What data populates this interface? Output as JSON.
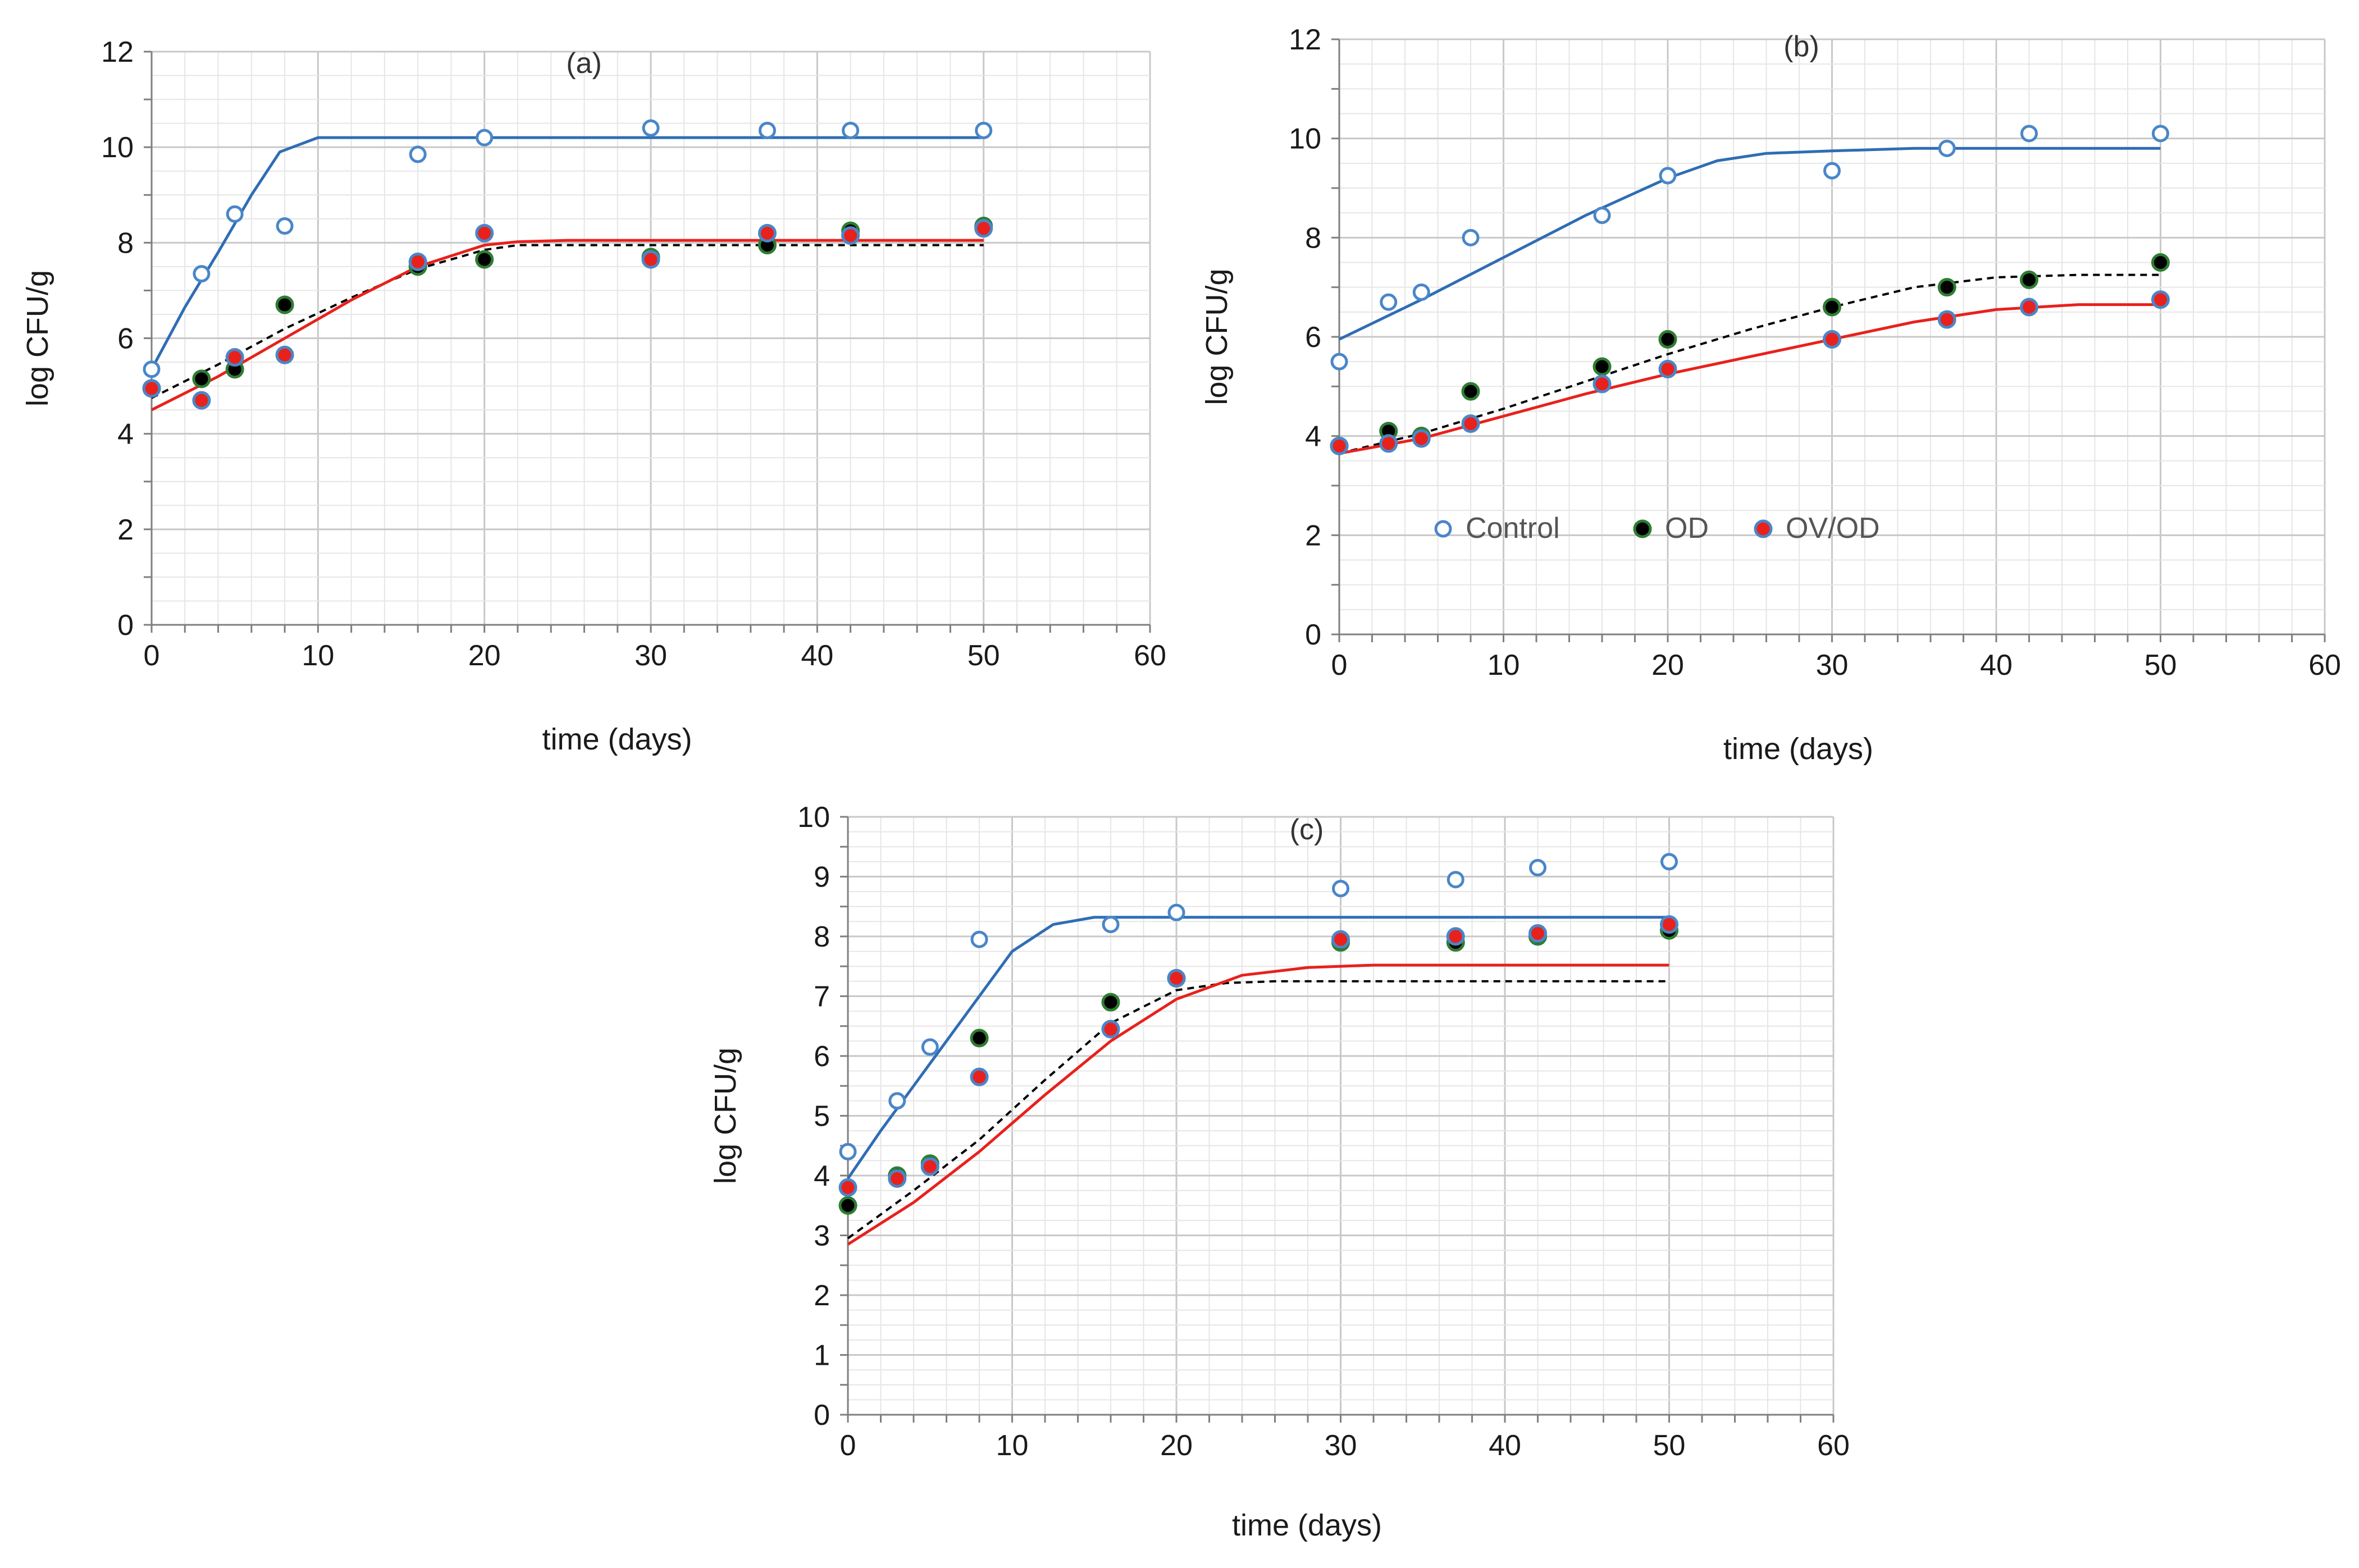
{
  "colors": {
    "control": "#4a86c8",
    "control_fit": "#2f6db4",
    "od_fill": "#000000",
    "od_ring": "#2e7d32",
    "ovod_fill": "#e8211c",
    "ovod_ring": "#4a86c8",
    "ovod_fit": "#e8211c",
    "od_fit": "#000000",
    "grid": "#d9d9d9",
    "axis": "#7f7f7f"
  },
  "legend": {
    "control": "Control",
    "od": "OD",
    "ovod": "OV/OD"
  },
  "chart_data": [
    {
      "id": "a",
      "type": "scatter",
      "title": "(a)",
      "xlabel": "time (days)",
      "ylabel": "log CFU/g",
      "xlim": [
        0,
        60
      ],
      "ylim": [
        0,
        12
      ],
      "xticks": [
        "0",
        "10",
        "20",
        "30",
        "40",
        "50",
        "60"
      ],
      "yticks": [
        "0",
        "2",
        "4",
        "6",
        "8",
        "10",
        "12"
      ],
      "ystep": 2,
      "grid": true,
      "legend_shown": false,
      "series": [
        {
          "name": "Control",
          "style": "open",
          "x": [
            0,
            3,
            5,
            8,
            16,
            20,
            30,
            37,
            42,
            50
          ],
          "y": [
            5.35,
            7.35,
            8.6,
            8.35,
            9.85,
            10.2,
            10.4,
            10.35,
            10.35,
            10.35
          ]
        },
        {
          "name": "OD",
          "style": "od",
          "x": [
            0,
            3,
            5,
            8,
            16,
            20,
            30,
            37,
            42,
            50
          ],
          "y": [
            4.95,
            5.15,
            5.35,
            6.7,
            7.5,
            7.65,
            7.7,
            7.95,
            8.25,
            8.35
          ]
        },
        {
          "name": "OV/OD",
          "style": "ovod",
          "x": [
            0,
            3,
            5,
            8,
            16,
            20,
            30,
            37,
            42,
            50
          ],
          "y": [
            4.95,
            4.7,
            5.6,
            5.65,
            7.6,
            8.2,
            7.65,
            8.2,
            8.15,
            8.3
          ]
        }
      ],
      "fits": [
        {
          "name": "Control fit",
          "style": "control",
          "x": [
            0,
            2,
            4,
            6,
            7.7,
            10,
            20,
            30,
            40,
            50
          ],
          "y": [
            5.35,
            6.65,
            7.8,
            9.0,
            9.9,
            10.2,
            10.2,
            10.2,
            10.2,
            10.2
          ]
        },
        {
          "name": "OD fit",
          "style": "od",
          "x": [
            0,
            4,
            8,
            12,
            16,
            20,
            22,
            25,
            30,
            40,
            50
          ],
          "y": [
            4.75,
            5.45,
            6.2,
            6.85,
            7.45,
            7.85,
            7.95,
            7.95,
            7.95,
            7.95,
            7.95
          ]
        },
        {
          "name": "OV/OD fit",
          "style": "ovod",
          "x": [
            0,
            4,
            8,
            12,
            16,
            20,
            22,
            25,
            30,
            40,
            50
          ],
          "y": [
            4.5,
            5.2,
            6.0,
            6.8,
            7.5,
            7.95,
            8.02,
            8.05,
            8.05,
            8.05,
            8.05
          ]
        }
      ]
    },
    {
      "id": "b",
      "type": "scatter",
      "title": "(b)",
      "xlabel": "time (days)",
      "ylabel": "log CFU/g",
      "xlim": [
        0,
        60
      ],
      "ylim": [
        0,
        12
      ],
      "xticks": [
        "0",
        "10",
        "20",
        "30",
        "40",
        "50",
        "60"
      ],
      "yticks": [
        "0",
        "2",
        "4",
        "6",
        "8",
        "10",
        "12"
      ],
      "ystep": 2,
      "grid": true,
      "legend_shown": true,
      "series": [
        {
          "name": "Control",
          "style": "open",
          "x": [
            0,
            3,
            5,
            8,
            16,
            20,
            30,
            37,
            42,
            50
          ],
          "y": [
            5.5,
            6.7,
            6.9,
            8.0,
            8.45,
            9.25,
            9.35,
            9.8,
            10.1,
            10.1
          ]
        },
        {
          "name": "OD",
          "style": "od",
          "x": [
            0,
            3,
            5,
            8,
            16,
            20,
            30,
            37,
            42,
            50
          ],
          "y": [
            3.8,
            4.1,
            4.0,
            4.9,
            5.4,
            5.95,
            6.6,
            7.0,
            7.15,
            7.5
          ]
        },
        {
          "name": "OV/OD",
          "style": "ovod",
          "x": [
            0,
            3,
            5,
            8,
            16,
            20,
            30,
            37,
            42,
            50
          ],
          "y": [
            3.8,
            3.85,
            3.95,
            4.25,
            5.05,
            5.35,
            5.95,
            6.35,
            6.6,
            6.75
          ]
        }
      ],
      "fits": [
        {
          "name": "Control fit",
          "style": "control",
          "x": [
            0,
            5,
            10,
            15,
            20,
            23,
            26,
            30,
            35,
            40,
            50
          ],
          "y": [
            5.95,
            6.75,
            7.6,
            8.45,
            9.2,
            9.55,
            9.7,
            9.75,
            9.8,
            9.8,
            9.8
          ]
        },
        {
          "name": "OD fit",
          "style": "od",
          "x": [
            0,
            5,
            10,
            15,
            20,
            25,
            30,
            35,
            40,
            45,
            50
          ],
          "y": [
            3.65,
            4.05,
            4.55,
            5.1,
            5.65,
            6.15,
            6.6,
            7.0,
            7.2,
            7.25,
            7.25
          ]
        },
        {
          "name": "OV/OD fit",
          "style": "ovod",
          "x": [
            0,
            5,
            10,
            15,
            20,
            25,
            30,
            35,
            40,
            45,
            50
          ],
          "y": [
            3.65,
            3.95,
            4.4,
            4.85,
            5.25,
            5.6,
            5.95,
            6.3,
            6.55,
            6.65,
            6.65
          ]
        }
      ]
    },
    {
      "id": "c",
      "type": "scatter",
      "title": "(c)",
      "xlabel": "time (days)",
      "ylabel": "log CFU/g",
      "xlim": [
        0,
        60
      ],
      "ylim": [
        0,
        10
      ],
      "xticks": [
        "0",
        "10",
        "20",
        "30",
        "40",
        "50",
        "60"
      ],
      "yticks": [
        "0",
        "1",
        "2",
        "3",
        "4",
        "5",
        "6",
        "7",
        "8",
        "9",
        "10"
      ],
      "ystep": 1,
      "grid": true,
      "legend_shown": false,
      "series": [
        {
          "name": "Control",
          "style": "open",
          "x": [
            0,
            3,
            5,
            8,
            16,
            20,
            30,
            37,
            42,
            50
          ],
          "y": [
            4.4,
            5.25,
            6.15,
            7.95,
            8.2,
            8.4,
            8.8,
            8.95,
            9.15,
            9.25
          ]
        },
        {
          "name": "OD",
          "style": "od",
          "x": [
            0,
            3,
            5,
            8,
            16,
            20,
            30,
            37,
            42,
            50
          ],
          "y": [
            3.5,
            4.0,
            4.2,
            6.3,
            6.9,
            7.3,
            7.9,
            7.9,
            8.0,
            8.1
          ]
        },
        {
          "name": "OV/OD",
          "style": "ovod",
          "x": [
            0,
            3,
            5,
            8,
            16,
            20,
            30,
            37,
            42,
            50
          ],
          "y": [
            3.8,
            3.95,
            4.15,
            5.65,
            6.45,
            7.3,
            7.95,
            8.0,
            8.05,
            8.2
          ]
        }
      ],
      "fits": [
        {
          "name": "Control fit",
          "style": "control",
          "x": [
            0,
            2,
            4,
            6,
            8,
            10,
            12.5,
            15,
            20,
            30,
            40,
            50
          ],
          "y": [
            3.95,
            4.75,
            5.5,
            6.25,
            7.0,
            7.75,
            8.2,
            8.32,
            8.32,
            8.32,
            8.32,
            8.32
          ]
        },
        {
          "name": "OD fit",
          "style": "od",
          "x": [
            0,
            4,
            8,
            12,
            16,
            20,
            23,
            26,
            30,
            40,
            50
          ],
          "y": [
            2.95,
            3.75,
            4.6,
            5.6,
            6.55,
            7.1,
            7.22,
            7.25,
            7.25,
            7.25,
            7.25
          ]
        },
        {
          "name": "OV/OD fit",
          "style": "ovod",
          "x": [
            0,
            4,
            8,
            12,
            16,
            20,
            24,
            28,
            32,
            40,
            50
          ],
          "y": [
            2.85,
            3.55,
            4.4,
            5.35,
            6.25,
            6.95,
            7.35,
            7.48,
            7.52,
            7.52,
            7.52
          ]
        }
      ]
    }
  ]
}
